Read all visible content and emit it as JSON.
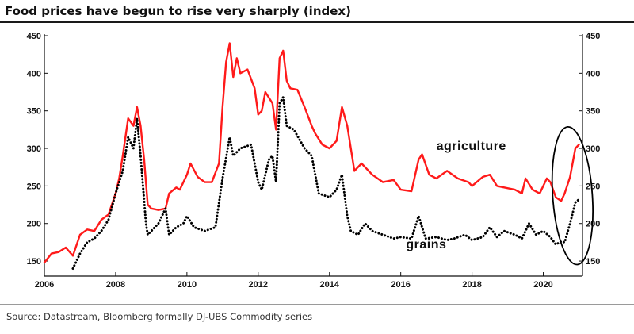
{
  "title": "Food prices have begun to rise very sharply (index)",
  "source": "Source: Datastream, Bloomberg formally DJ-UBS Commodity series",
  "chart_data": {
    "type": "line",
    "title": "Food prices have begun to rise very sharply (index)",
    "xlim": [
      2006,
      2021.1
    ],
    "ylim": [
      130,
      450
    ],
    "x_ticks": [
      2006,
      2008,
      2010,
      2012,
      2014,
      2016,
      2018,
      2020
    ],
    "y_ticks": [
      150,
      200,
      250,
      300,
      350,
      400,
      450
    ],
    "grid": false,
    "dual_axis": true,
    "annotation": "ellipse around 2020-2021",
    "series": [
      {
        "name": "agriculture",
        "color": "#ff1a1a",
        "style": "solid",
        "points": [
          [
            2006.0,
            148
          ],
          [
            2006.2,
            160
          ],
          [
            2006.4,
            162
          ],
          [
            2006.6,
            168
          ],
          [
            2006.8,
            157
          ],
          [
            2007.0,
            185
          ],
          [
            2007.2,
            192
          ],
          [
            2007.4,
            190
          ],
          [
            2007.6,
            205
          ],
          [
            2007.8,
            212
          ],
          [
            2008.0,
            240
          ],
          [
            2008.1,
            260
          ],
          [
            2008.2,
            290
          ],
          [
            2008.35,
            340
          ],
          [
            2008.5,
            330
          ],
          [
            2008.6,
            355
          ],
          [
            2008.7,
            330
          ],
          [
            2008.8,
            285
          ],
          [
            2008.9,
            225
          ],
          [
            2009.0,
            220
          ],
          [
            2009.2,
            218
          ],
          [
            2009.4,
            220
          ],
          [
            2009.5,
            240
          ],
          [
            2009.7,
            248
          ],
          [
            2009.8,
            245
          ],
          [
            2010.0,
            265
          ],
          [
            2010.1,
            280
          ],
          [
            2010.3,
            262
          ],
          [
            2010.5,
            255
          ],
          [
            2010.7,
            255
          ],
          [
            2010.9,
            280
          ],
          [
            2011.0,
            355
          ],
          [
            2011.1,
            415
          ],
          [
            2011.2,
            440
          ],
          [
            2011.3,
            395
          ],
          [
            2011.4,
            420
          ],
          [
            2011.5,
            400
          ],
          [
            2011.7,
            405
          ],
          [
            2011.9,
            380
          ],
          [
            2012.0,
            345
          ],
          [
            2012.1,
            350
          ],
          [
            2012.2,
            375
          ],
          [
            2012.4,
            360
          ],
          [
            2012.5,
            325
          ],
          [
            2012.6,
            420
          ],
          [
            2012.7,
            430
          ],
          [
            2012.8,
            390
          ],
          [
            2012.9,
            380
          ],
          [
            2013.1,
            378
          ],
          [
            2013.3,
            355
          ],
          [
            2013.5,
            330
          ],
          [
            2013.6,
            320
          ],
          [
            2013.8,
            305
          ],
          [
            2014.0,
            300
          ],
          [
            2014.2,
            310
          ],
          [
            2014.35,
            355
          ],
          [
            2014.5,
            330
          ],
          [
            2014.7,
            270
          ],
          [
            2014.9,
            280
          ],
          [
            2015.2,
            265
          ],
          [
            2015.5,
            255
          ],
          [
            2015.8,
            258
          ],
          [
            2016.0,
            245
          ],
          [
            2016.3,
            243
          ],
          [
            2016.5,
            285
          ],
          [
            2016.6,
            292
          ],
          [
            2016.8,
            265
          ],
          [
            2017.0,
            260
          ],
          [
            2017.3,
            270
          ],
          [
            2017.6,
            260
          ],
          [
            2017.9,
            255
          ],
          [
            2018.0,
            250
          ],
          [
            2018.3,
            262
          ],
          [
            2018.5,
            265
          ],
          [
            2018.7,
            250
          ],
          [
            2018.9,
            248
          ],
          [
            2019.2,
            245
          ],
          [
            2019.4,
            240
          ],
          [
            2019.5,
            260
          ],
          [
            2019.7,
            245
          ],
          [
            2019.9,
            240
          ],
          [
            2020.1,
            260
          ],
          [
            2020.2,
            255
          ],
          [
            2020.35,
            235
          ],
          [
            2020.5,
            230
          ],
          [
            2020.6,
            240
          ],
          [
            2020.75,
            262
          ],
          [
            2020.9,
            300
          ],
          [
            2021.0,
            305
          ]
        ]
      },
      {
        "name": "grains",
        "color": "#000000",
        "style": "dotted",
        "points": [
          [
            2006.8,
            140
          ],
          [
            2006.9,
            150
          ],
          [
            2007.0,
            160
          ],
          [
            2007.2,
            175
          ],
          [
            2007.4,
            180
          ],
          [
            2007.6,
            190
          ],
          [
            2007.8,
            205
          ],
          [
            2008.0,
            240
          ],
          [
            2008.2,
            270
          ],
          [
            2008.35,
            315
          ],
          [
            2008.5,
            300
          ],
          [
            2008.6,
            340
          ],
          [
            2008.7,
            290
          ],
          [
            2008.85,
            200
          ],
          [
            2008.9,
            185
          ],
          [
            2009.0,
            190
          ],
          [
            2009.2,
            200
          ],
          [
            2009.4,
            220
          ],
          [
            2009.5,
            185
          ],
          [
            2009.7,
            195
          ],
          [
            2009.9,
            200
          ],
          [
            2010.0,
            210
          ],
          [
            2010.2,
            195
          ],
          [
            2010.5,
            190
          ],
          [
            2010.8,
            195
          ],
          [
            2011.0,
            260
          ],
          [
            2011.2,
            315
          ],
          [
            2011.3,
            290
          ],
          [
            2011.5,
            300
          ],
          [
            2011.8,
            305
          ],
          [
            2012.0,
            255
          ],
          [
            2012.1,
            245
          ],
          [
            2012.3,
            285
          ],
          [
            2012.4,
            290
          ],
          [
            2012.5,
            255
          ],
          [
            2012.6,
            360
          ],
          [
            2012.7,
            368
          ],
          [
            2012.8,
            330
          ],
          [
            2013.0,
            325
          ],
          [
            2013.3,
            300
          ],
          [
            2013.5,
            290
          ],
          [
            2013.7,
            240
          ],
          [
            2014.0,
            235
          ],
          [
            2014.2,
            245
          ],
          [
            2014.35,
            265
          ],
          [
            2014.5,
            210
          ],
          [
            2014.6,
            190
          ],
          [
            2014.8,
            185
          ],
          [
            2015.0,
            200
          ],
          [
            2015.2,
            190
          ],
          [
            2015.5,
            185
          ],
          [
            2015.8,
            180
          ],
          [
            2016.0,
            182
          ],
          [
            2016.3,
            180
          ],
          [
            2016.5,
            210
          ],
          [
            2016.7,
            180
          ],
          [
            2017.0,
            182
          ],
          [
            2017.3,
            178
          ],
          [
            2017.5,
            180
          ],
          [
            2017.8,
            185
          ],
          [
            2018.0,
            178
          ],
          [
            2018.3,
            182
          ],
          [
            2018.5,
            195
          ],
          [
            2018.7,
            182
          ],
          [
            2018.9,
            190
          ],
          [
            2019.2,
            185
          ],
          [
            2019.4,
            180
          ],
          [
            2019.6,
            200
          ],
          [
            2019.8,
            185
          ],
          [
            2020.0,
            190
          ],
          [
            2020.2,
            182
          ],
          [
            2020.35,
            172
          ],
          [
            2020.5,
            176
          ],
          [
            2020.6,
            175
          ],
          [
            2020.75,
            200
          ],
          [
            2020.9,
            228
          ],
          [
            2021.0,
            232
          ]
        ]
      }
    ]
  }
}
